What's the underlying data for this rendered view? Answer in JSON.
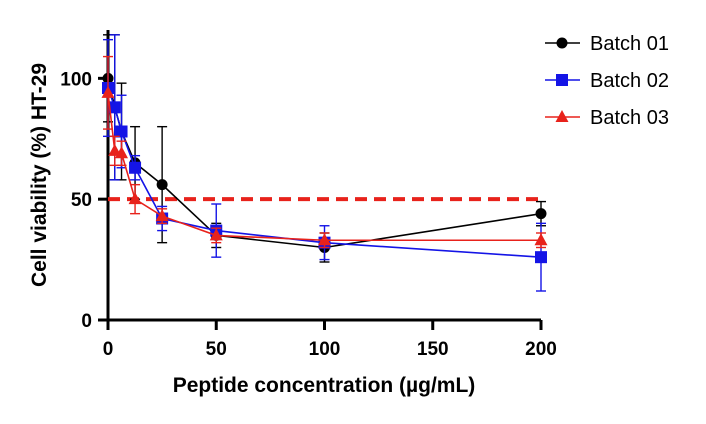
{
  "chart_data": {
    "type": "line",
    "xlabel": "Peptide concentration (µg/mL)",
    "ylabel": "Cell viability (%) HT-29",
    "xlim": [
      0,
      200
    ],
    "ylim": [
      0,
      120
    ],
    "x_ticks": [
      "0",
      "50",
      "100",
      "150",
      "200"
    ],
    "y_ticks": [
      "0",
      "50",
      "100"
    ],
    "x_tick_values": [
      0,
      50,
      100,
      150,
      200
    ],
    "y_tick_values": [
      0,
      50,
      100
    ],
    "grid": false,
    "legend_position": "top-right",
    "reference_line": {
      "y": 50,
      "style": "dashed",
      "color": "#e8221b"
    },
    "x": [
      0,
      3.125,
      6.25,
      12.5,
      25,
      50,
      100,
      200
    ],
    "series": [
      {
        "name": "Batch 01",
        "marker": "circle",
        "color": "#000000",
        "values": [
          100,
          88,
          78,
          65,
          56,
          35,
          30,
          44
        ],
        "errors": [
          18,
          30,
          20,
          15,
          24,
          5,
          6,
          5
        ]
      },
      {
        "name": "Batch 02",
        "marker": "square",
        "color": "#1414e6",
        "values": [
          96,
          88,
          78,
          63,
          42,
          37,
          32,
          26
        ],
        "errors": [
          20,
          30,
          15,
          5,
          5,
          11,
          7,
          14
        ]
      },
      {
        "name": "Batch 03",
        "marker": "triangle",
        "color": "#e8221b",
        "values": [
          94,
          70,
          69,
          50,
          43,
          35,
          33,
          33
        ],
        "errors": [
          15,
          6,
          5,
          6,
          3,
          3,
          3,
          3
        ]
      }
    ]
  }
}
